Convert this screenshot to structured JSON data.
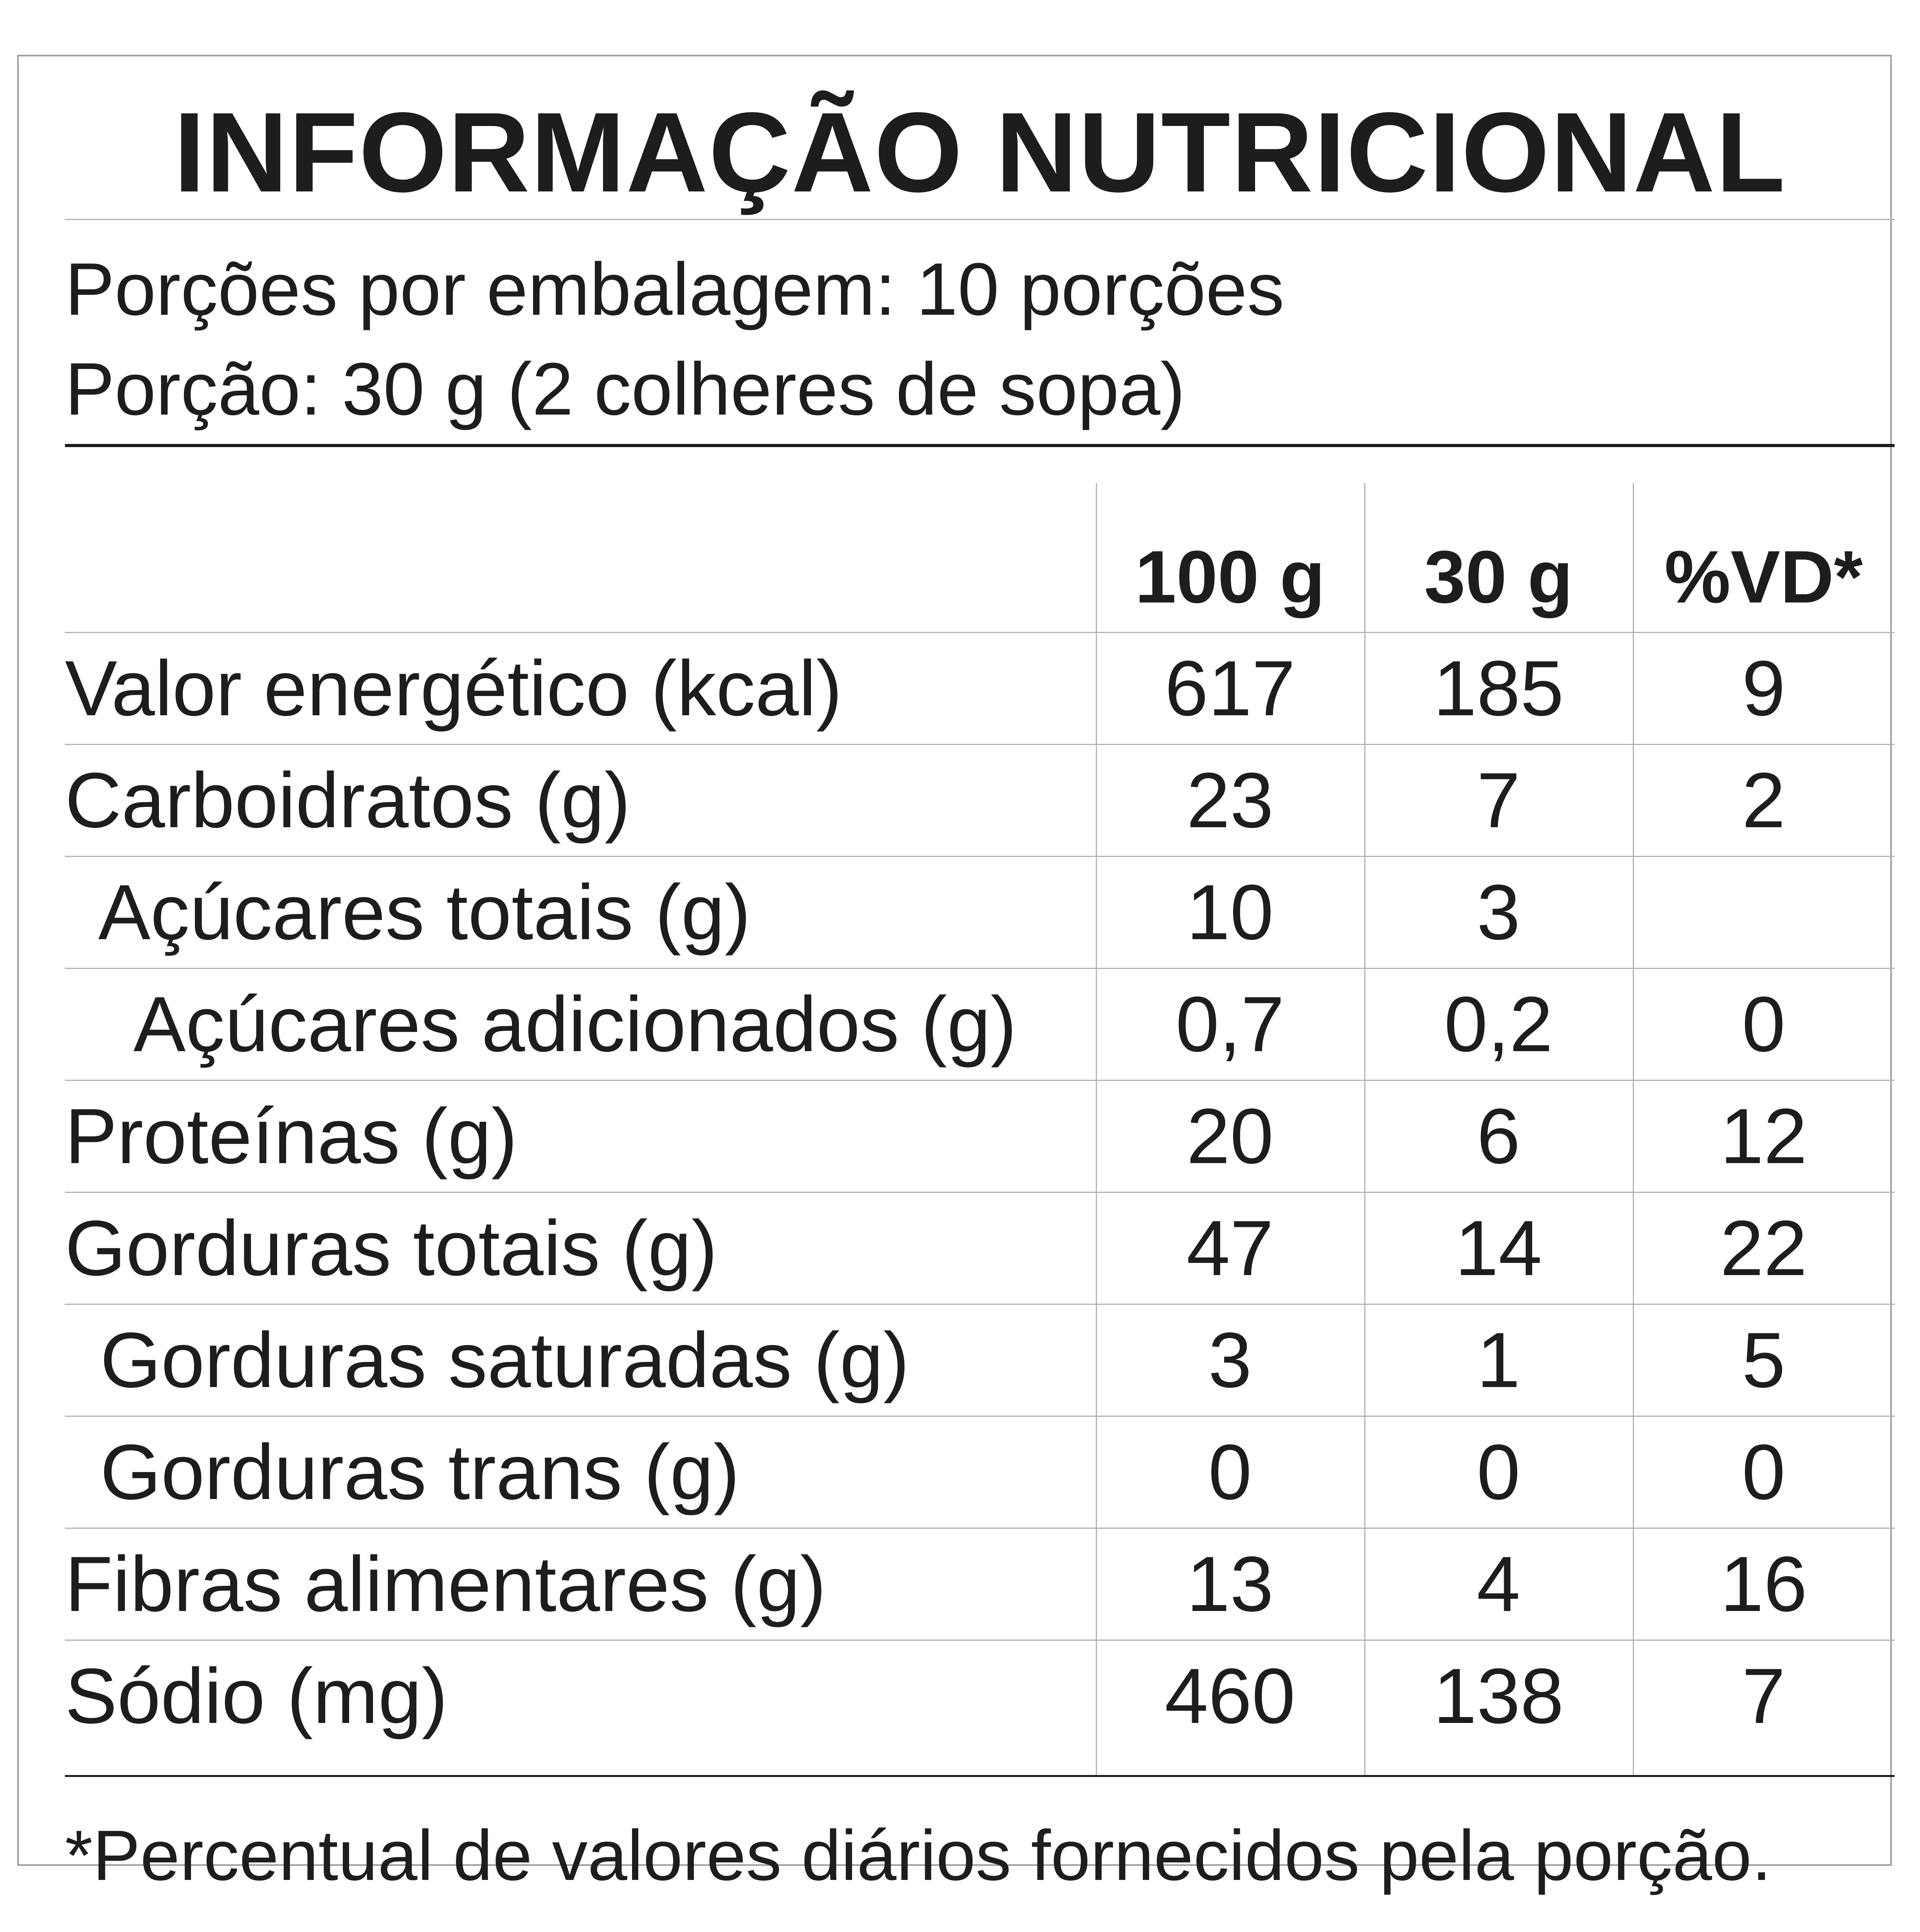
{
  "label": {
    "title": "INFORMAÇÃO NUTRICIONAL",
    "servings_per_package": "Porções por embalagem: 10 porções",
    "serving_size": "Porção: 30 g (2 colheres de sopa)",
    "columns": {
      "per_100g": "100 g",
      "per_portion": "30 g",
      "daily_value": "%VD*"
    },
    "rows": [
      {
        "name": "Valor energético (kcal)",
        "per_100g": "617",
        "per_portion": "185",
        "dv": "9"
      },
      {
        "name": "Carboidratos (g)",
        "per_100g": "23",
        "per_portion": "7",
        "dv": "2"
      },
      {
        "name": "Açúcares totais (g)",
        "per_100g": "10",
        "per_portion": "3",
        "dv": ""
      },
      {
        "name": "Açúcares adicionados (g)",
        "per_100g": "0,7",
        "per_portion": "0,2",
        "dv": "0"
      },
      {
        "name": "Proteínas (g)",
        "per_100g": "20",
        "per_portion": "6",
        "dv": "12"
      },
      {
        "name": "Gorduras totais (g)",
        "per_100g": "47",
        "per_portion": "14",
        "dv": "22"
      },
      {
        "name": "Gorduras saturadas (g)",
        "per_100g": "3",
        "per_portion": "1",
        "dv": "5"
      },
      {
        "name": "Gorduras trans (g)",
        "per_100g": "0",
        "per_portion": "0",
        "dv": "0"
      },
      {
        "name": "Fibras alimentares (g)",
        "per_100g": "13",
        "per_portion": "4",
        "dv": "16"
      },
      {
        "name": "Sódio (mg)",
        "per_100g": "460",
        "per_portion": "138",
        "dv": "7"
      }
    ],
    "footnote": "*Percentual de valores diários fornecidos pela porção."
  }
}
